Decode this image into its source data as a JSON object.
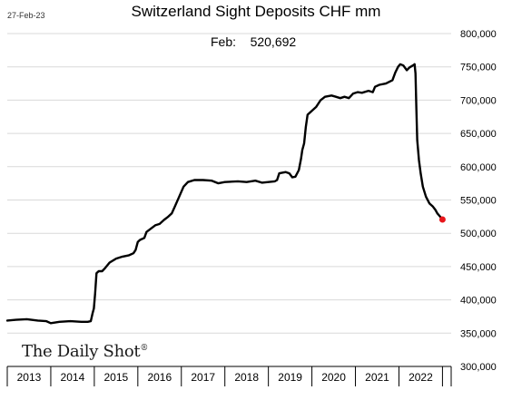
{
  "date_stamp": "27-Feb-23",
  "brand": {
    "name": "The Daily Shot",
    "mark": "®"
  },
  "colors": {
    "line": "#000000",
    "marker": "#e8161b",
    "grid": "#d9d9d9",
    "axis": "#000000"
  },
  "chart_data": {
    "type": "line",
    "title": "Switzerland Sight Deposits CHF mm",
    "annotation": {
      "label": "Feb:",
      "value": "520,692"
    },
    "xlabel": "",
    "ylabel": "",
    "ylim": [
      300000,
      800000
    ],
    "y_ticks": [
      300000,
      350000,
      400000,
      450000,
      500000,
      550000,
      600000,
      650000,
      700000,
      750000,
      800000
    ],
    "y_tick_labels": [
      "300,000",
      "350,000",
      "400,000",
      "450,000",
      "500,000",
      "550,000",
      "600,000",
      "650,000",
      "700,000",
      "750,000",
      "800,000"
    ],
    "y_axis_position": "right",
    "grid": true,
    "x_categories": [
      "2013",
      "2014",
      "2015",
      "2016",
      "2017",
      "2018",
      "2019",
      "2020",
      "2021",
      "2022"
    ],
    "x_range": [
      2013.0,
      2023.2
    ],
    "series": [
      {
        "values": [
          [
            2013.0,
            369000
          ],
          [
            2013.2,
            370000
          ],
          [
            2013.45,
            371000
          ],
          [
            2013.7,
            369000
          ],
          [
            2013.9,
            368000
          ],
          [
            2014.0,
            365000
          ],
          [
            2014.2,
            367000
          ],
          [
            2014.45,
            368000
          ],
          [
            2014.7,
            367000
          ],
          [
            2014.85,
            367000
          ],
          [
            2014.92,
            368000
          ],
          [
            2014.96,
            380000
          ],
          [
            2014.99,
            387000
          ],
          [
            2015.02,
            410000
          ],
          [
            2015.05,
            440000
          ],
          [
            2015.1,
            443000
          ],
          [
            2015.18,
            443000
          ],
          [
            2015.25,
            448000
          ],
          [
            2015.35,
            456000
          ],
          [
            2015.5,
            462000
          ],
          [
            2015.65,
            465000
          ],
          [
            2015.8,
            467000
          ],
          [
            2015.9,
            470000
          ],
          [
            2015.95,
            475000
          ],
          [
            2016.0,
            487000
          ],
          [
            2016.05,
            490000
          ],
          [
            2016.15,
            493000
          ],
          [
            2016.2,
            502000
          ],
          [
            2016.3,
            507000
          ],
          [
            2016.4,
            512000
          ],
          [
            2016.5,
            514000
          ],
          [
            2016.6,
            520000
          ],
          [
            2016.7,
            525000
          ],
          [
            2016.78,
            530000
          ],
          [
            2016.85,
            540000
          ],
          [
            2016.95,
            555000
          ],
          [
            2017.05,
            570000
          ],
          [
            2017.15,
            577000
          ],
          [
            2017.3,
            580000
          ],
          [
            2017.5,
            580000
          ],
          [
            2017.7,
            579000
          ],
          [
            2017.85,
            575000
          ],
          [
            2018.0,
            577000
          ],
          [
            2018.3,
            578000
          ],
          [
            2018.5,
            577000
          ],
          [
            2018.7,
            579000
          ],
          [
            2018.85,
            576000
          ],
          [
            2019.0,
            577000
          ],
          [
            2019.15,
            578000
          ],
          [
            2019.2,
            580000
          ],
          [
            2019.25,
            590000
          ],
          [
            2019.4,
            592000
          ],
          [
            2019.48,
            590000
          ],
          [
            2019.55,
            584000
          ],
          [
            2019.62,
            585000
          ],
          [
            2019.7,
            595000
          ],
          [
            2019.75,
            612000
          ],
          [
            2019.78,
            625000
          ],
          [
            2019.82,
            635000
          ],
          [
            2019.86,
            660000
          ],
          [
            2019.9,
            678000
          ],
          [
            2020.0,
            684000
          ],
          [
            2020.1,
            690000
          ],
          [
            2020.2,
            700000
          ],
          [
            2020.3,
            705000
          ],
          [
            2020.45,
            707000
          ],
          [
            2020.55,
            705000
          ],
          [
            2020.65,
            703000
          ],
          [
            2020.75,
            705000
          ],
          [
            2020.85,
            703000
          ],
          [
            2020.95,
            710000
          ],
          [
            2021.05,
            712000
          ],
          [
            2021.15,
            711000
          ],
          [
            2021.3,
            714000
          ],
          [
            2021.4,
            712000
          ],
          [
            2021.45,
            720000
          ],
          [
            2021.55,
            723000
          ],
          [
            2021.7,
            725000
          ],
          [
            2021.85,
            730000
          ],
          [
            2021.92,
            742000
          ],
          [
            2021.98,
            750000
          ],
          [
            2022.03,
            754000
          ],
          [
            2022.1,
            752000
          ],
          [
            2022.18,
            745000
          ],
          [
            2022.24,
            749000
          ],
          [
            2022.32,
            752000
          ],
          [
            2022.36,
            754000
          ],
          [
            2022.38,
            740000
          ],
          [
            2022.4,
            690000
          ],
          [
            2022.42,
            640000
          ],
          [
            2022.46,
            610000
          ],
          [
            2022.5,
            590000
          ],
          [
            2022.55,
            570000
          ],
          [
            2022.62,
            555000
          ],
          [
            2022.7,
            545000
          ],
          [
            2022.78,
            540000
          ],
          [
            2022.84,
            535000
          ],
          [
            2022.88,
            530000
          ],
          [
            2022.92,
            527000
          ],
          [
            2022.96,
            524000
          ],
          [
            2023.0,
            520692
          ]
        ]
      }
    ],
    "last_point": {
      "x": 2023.0,
      "y": 520692
    }
  }
}
